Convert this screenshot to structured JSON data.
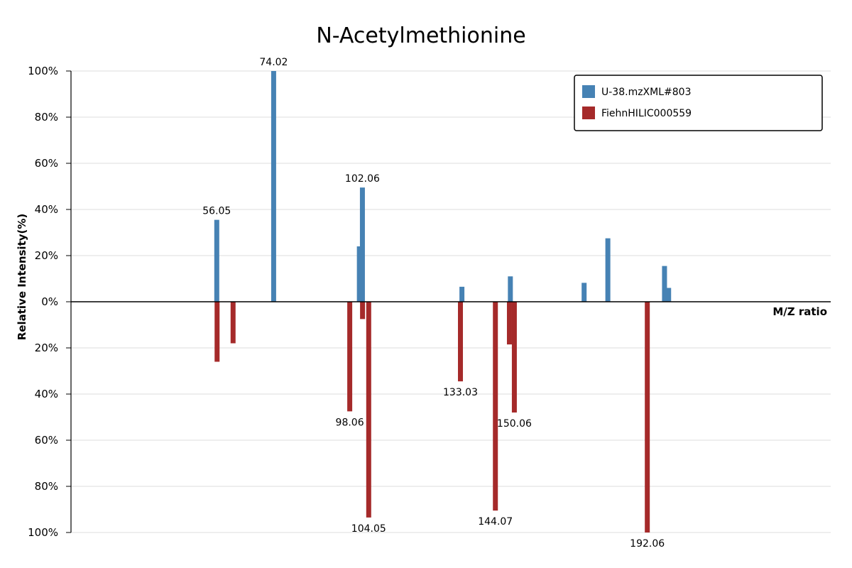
{
  "chart_data": {
    "type": "bar",
    "title": "N-Acetylmethionine",
    "xlabel": "M/Z ratio",
    "ylabel": "Relative Intensity(%)",
    "xlim": [
      10,
      250
    ],
    "ylim_top": [
      0,
      100
    ],
    "ylim_bottom": [
      0,
      100
    ],
    "y_ticks_top": [
      "0%",
      "20%",
      "40%",
      "60%",
      "80%",
      "100%"
    ],
    "y_ticks_bottom": [
      "20%",
      "40%",
      "60%",
      "80%",
      "100%"
    ],
    "grid": true,
    "legend_position": "top-right",
    "series": [
      {
        "name": "U-38.mzXML#803",
        "color": "#4682B4",
        "direction": "up",
        "peaks": [
          {
            "mz": 56.05,
            "intensity": 35.5,
            "label": "56.05"
          },
          {
            "mz": 74.02,
            "intensity": 100,
            "label": "74.02"
          },
          {
            "mz": 101.1,
            "intensity": 24,
            "label": ""
          },
          {
            "mz": 102.06,
            "intensity": 49.5,
            "label": "102.06"
          },
          {
            "mz": 133.5,
            "intensity": 6.5,
            "label": ""
          },
          {
            "mz": 148.8,
            "intensity": 11,
            "label": ""
          },
          {
            "mz": 172.1,
            "intensity": 8.2,
            "label": ""
          },
          {
            "mz": 179.6,
            "intensity": 27.5,
            "label": ""
          },
          {
            "mz": 197.5,
            "intensity": 15.5,
            "label": ""
          },
          {
            "mz": 198.8,
            "intensity": 6,
            "label": ""
          }
        ]
      },
      {
        "name": "FiehnHILIC000559",
        "color": "#A52A2A",
        "direction": "down",
        "peaks": [
          {
            "mz": 56.15,
            "intensity": 26,
            "label": ""
          },
          {
            "mz": 61.2,
            "intensity": 18,
            "label": ""
          },
          {
            "mz": 98.06,
            "intensity": 47.5,
            "label": "98.06"
          },
          {
            "mz": 102.1,
            "intensity": 7.5,
            "label": ""
          },
          {
            "mz": 104.05,
            "intensity": 93.5,
            "label": "104.05"
          },
          {
            "mz": 133.03,
            "intensity": 34.5,
            "label": "133.03"
          },
          {
            "mz": 144.07,
            "intensity": 90.5,
            "label": "144.07"
          },
          {
            "mz": 148.5,
            "intensity": 18.5,
            "label": ""
          },
          {
            "mz": 150.06,
            "intensity": 48,
            "label": "150.06"
          },
          {
            "mz": 192.06,
            "intensity": 100,
            "label": "192.06"
          }
        ]
      }
    ]
  }
}
